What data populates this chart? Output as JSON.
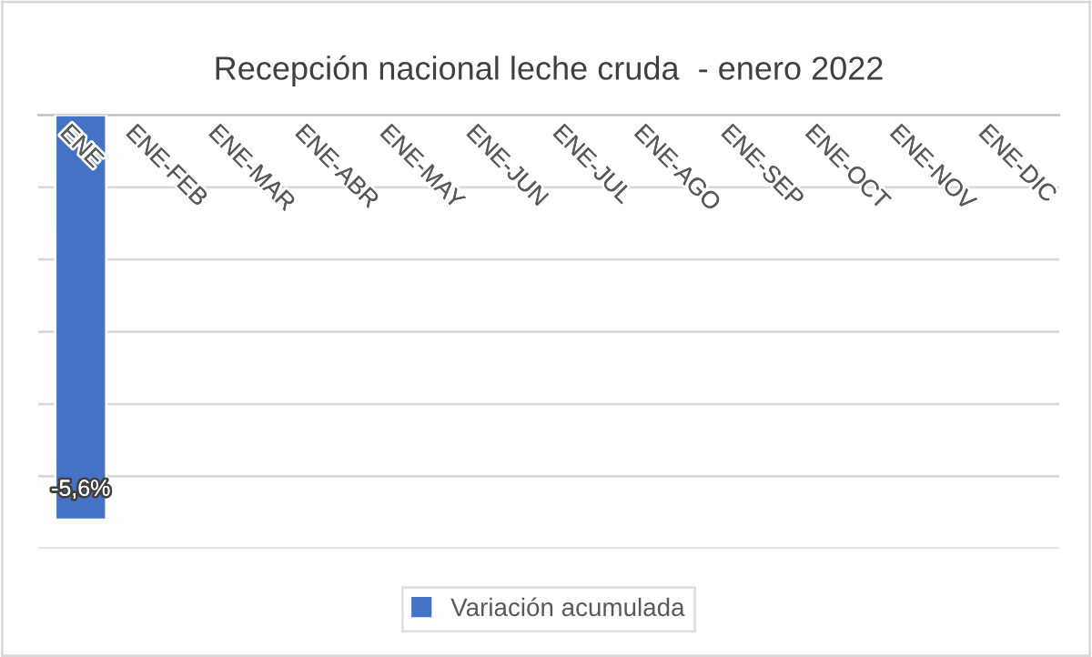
{
  "chart_data": {
    "type": "bar",
    "title": "Recepción nacional leche cruda  - enero 2022",
    "categories": [
      "ENE",
      "ENE-FEB",
      "ENE-MAR",
      "ENE-ABR",
      "ENE-MAY",
      "ENE-JUN",
      "ENE-JUL",
      "ENE-AGO",
      "ENE-SEP",
      "ENE-OCT",
      "ENE-NOV",
      "ENE-DIC"
    ],
    "series": [
      {
        "name": "Variación acumulada",
        "color": "#4472c4",
        "values": [
          -5.6,
          null,
          null,
          null,
          null,
          null,
          null,
          null,
          null,
          null,
          null,
          null
        ],
        "value_labels": [
          "-5,6%",
          null,
          null,
          null,
          null,
          null,
          null,
          null,
          null,
          null,
          null,
          null
        ]
      }
    ],
    "ylim": [
      -6,
      0
    ],
    "yticks": [
      {
        "value": -6,
        "label": null
      },
      {
        "value": -5,
        "label": null
      },
      {
        "value": -4,
        "label": null
      },
      {
        "value": -3,
        "label": null
      },
      {
        "value": -2,
        "label": null
      },
      {
        "value": -1,
        "label": null
      },
      {
        "value": 0,
        "label": null
      }
    ],
    "tick_labels": "x",
    "grid": "y",
    "legend": "bottom"
  }
}
